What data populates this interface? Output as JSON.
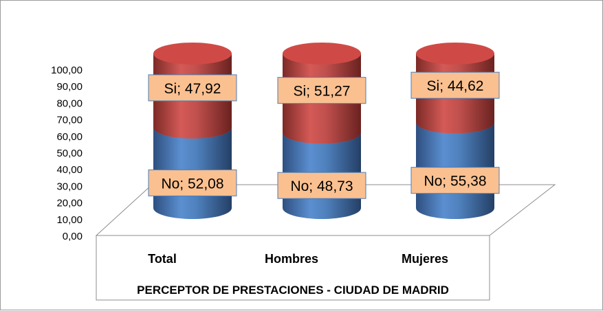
{
  "chart_data": {
    "type": "bar",
    "style": "3d-stacked-cylinder",
    "title": "PERCEPTOR DE PRESTACIONES - CIUDAD DE MADRID",
    "categories": [
      "Total",
      "Hombres",
      "Mujeres"
    ],
    "series": [
      {
        "name": "No",
        "values": [
          52.08,
          48.73,
          55.38
        ],
        "color": "#4f81bd",
        "labels": [
          "No; 52,08",
          "No; 48,73",
          "No; 55,38"
        ]
      },
      {
        "name": "Si",
        "values": [
          47.92,
          51.27,
          44.62
        ],
        "color": "#c0504d",
        "labels": [
          "Si; 47,92",
          "Si; 51,27",
          "Si; 44,62"
        ]
      }
    ],
    "ylim": [
      0,
      100
    ],
    "yticks": [
      "0,00",
      "10,00",
      "20,00",
      "30,00",
      "40,00",
      "50,00",
      "60,00",
      "70,00",
      "80,00",
      "90,00",
      "100,00"
    ],
    "grid": false,
    "legend": "none",
    "label_box_color": "#fac090"
  }
}
